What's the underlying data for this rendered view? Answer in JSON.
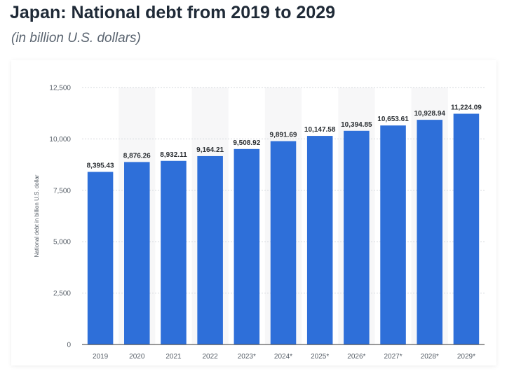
{
  "header": {
    "title": "Japan: National debt from 2019 to 2029",
    "subtitle": "(in billion U.S. dollars)"
  },
  "chart_data": {
    "type": "bar",
    "categories": [
      "2019",
      "2020",
      "2021",
      "2022",
      "2023*",
      "2024*",
      "2025*",
      "2026*",
      "2027*",
      "2028*",
      "2029*"
    ],
    "values": [
      8395.43,
      8876.26,
      8932.11,
      9164.21,
      9508.92,
      9891.69,
      10147.58,
      10394.85,
      10653.61,
      10928.94,
      11224.09
    ],
    "value_labels": [
      "8,395.43",
      "8,876.26",
      "8,932.11",
      "9,164.21",
      "9,508.92",
      "9,891.69",
      "10,147.58",
      "10,394.85",
      "10,653.61",
      "10,928.94",
      "11,224.09"
    ],
    "ylabel": "National debt in billion U.S. dollar",
    "xlabel": "",
    "ylim": [
      0,
      12500
    ],
    "yticks": [
      0,
      2500,
      5000,
      7500,
      10000,
      12500
    ],
    "ytick_labels": [
      "0",
      "2,500",
      "5,000",
      "7,500",
      "10,000",
      "12,500"
    ],
    "grid": true,
    "legend": "none",
    "colors": {
      "bar": "#2e6fd9",
      "alt_band": "#f7f7f8",
      "grid": "#d6d9dd",
      "axis": "#333333"
    }
  }
}
